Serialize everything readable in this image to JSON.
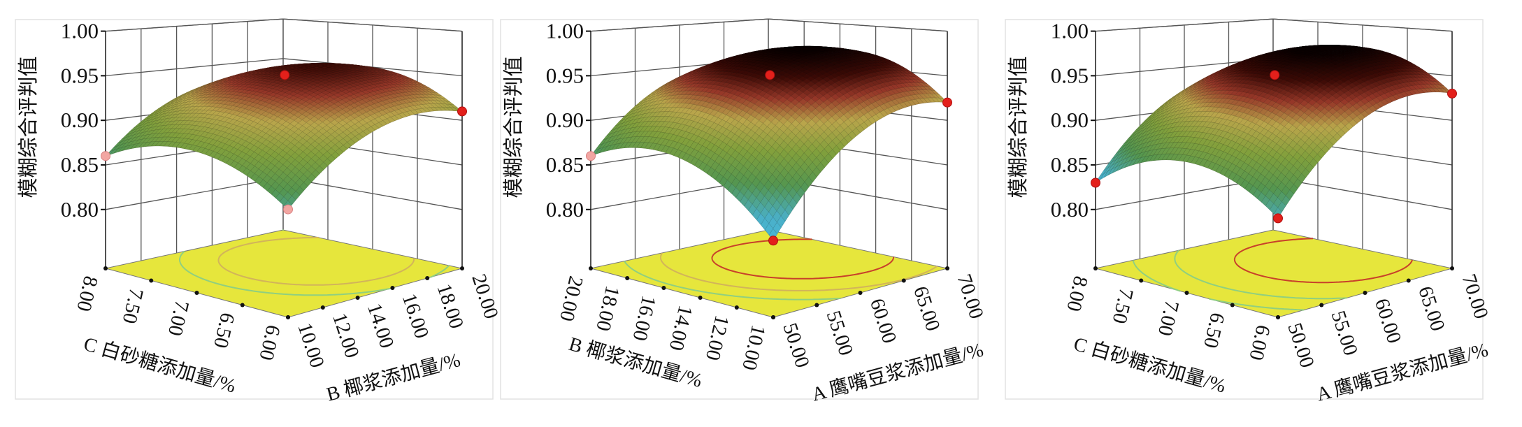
{
  "chart_data": [
    {
      "type": "surface",
      "zlabel": "模糊综合评判值",
      "zticks": [
        "0.80",
        "0.85",
        "0.90",
        "0.95",
        "1.00"
      ],
      "zlim": [
        0.734,
        1.0
      ],
      "left_axis": {
        "label": "C 白砂糖添加量/%",
        "ticks": [
          "8.00",
          "7.50",
          "7.00",
          "6.50",
          "6.00"
        ],
        "range": [
          8.0,
          6.0
        ]
      },
      "right_axis": {
        "label": "B 椰浆添加量/%",
        "ticks": [
          "10.00",
          "12.00",
          "14.00",
          "16.00",
          "18.00",
          "20.00"
        ],
        "range": [
          10.0,
          20.0
        ]
      },
      "model": {
        "c0": 0.955,
        "a_s": 0.00375,
        "a_t": 0.02875,
        "a_ss": -0.035,
        "a_tt": -0.034,
        "a_st": 0.00125
      },
      "contour_levels": [
        0.92,
        0.94
      ],
      "design_points": [
        {
          "s": 0,
          "t": 0,
          "z": 0.96,
          "above": true
        },
        {
          "s": 1,
          "t": -1,
          "z": 0.86,
          "above": false
        },
        {
          "s": -1,
          "t": -1,
          "z": 0.855,
          "above": false
        },
        {
          "s": -1,
          "t": 1,
          "z": 0.91,
          "above": true
        }
      ]
    },
    {
      "type": "surface",
      "zlabel": "模糊综合评判值",
      "zticks": [
        "0.80",
        "0.85",
        "0.90",
        "0.95",
        "1.00"
      ],
      "zlim": [
        0.734,
        1.0
      ],
      "left_axis": {
        "label": "B 椰浆添加量/%",
        "ticks": [
          "20.00",
          "18.00",
          "16.00",
          "14.00",
          "12.00",
          "10.00"
        ],
        "range": [
          20.0,
          10.0
        ]
      },
      "right_axis": {
        "label": "A 鹰嘴豆浆添加量/%",
        "ticks": [
          "50.00",
          "55.00",
          "60.00",
          "65.00",
          "70.00"
        ],
        "range": [
          50.0,
          70.0
        ]
      },
      "model": {
        "c0": 0.97,
        "a_s": 0.0125,
        "a_t": 0.0425,
        "a_ss": -0.044,
        "a_tt": -0.0435,
        "a_st": -0.0075
      },
      "contour_levels": [
        0.9,
        0.93,
        0.96
      ],
      "design_points": [
        {
          "s": 0,
          "t": 0,
          "z": 0.96,
          "above": true
        },
        {
          "s": 1,
          "t": -1,
          "z": 0.86,
          "above": false
        },
        {
          "s": -1,
          "t": -1,
          "z": 0.82,
          "above": true
        },
        {
          "s": -1,
          "t": 1,
          "z": 0.92,
          "above": true
        }
      ]
    },
    {
      "type": "surface",
      "zlabel": "模糊综合评判值",
      "zticks": [
        "0.80",
        "0.85",
        "0.90",
        "0.95",
        "1.00"
      ],
      "zlim": [
        0.734,
        1.0
      ],
      "left_axis": {
        "label": "C 白砂糖添加量/%",
        "ticks": [
          "8.00",
          "7.50",
          "7.00",
          "6.50",
          "6.00"
        ],
        "range": [
          8.0,
          6.0
        ]
      },
      "right_axis": {
        "label": "A 鹰嘴豆浆添加量/%",
        "ticks": [
          "50.00",
          "55.00",
          "60.00",
          "65.00",
          "70.00"
        ],
        "range": [
          50.0,
          70.0
        ]
      },
      "model": {
        "c0": 0.97,
        "a_s": -0.00375,
        "a_t": 0.04625,
        "a_ss": -0.043,
        "a_tt": -0.043,
        "a_st": 0.00375
      },
      "contour_levels": [
        0.88,
        0.92,
        0.96
      ],
      "design_points": [
        {
          "s": 0,
          "t": 0,
          "z": 0.96,
          "above": true
        },
        {
          "s": 1,
          "t": -1,
          "z": 0.83,
          "above": true
        },
        {
          "s": -1,
          "t": -1,
          "z": 0.845,
          "above": true
        },
        {
          "s": -1,
          "t": 1,
          "z": 0.93,
          "above": true
        }
      ]
    }
  ]
}
